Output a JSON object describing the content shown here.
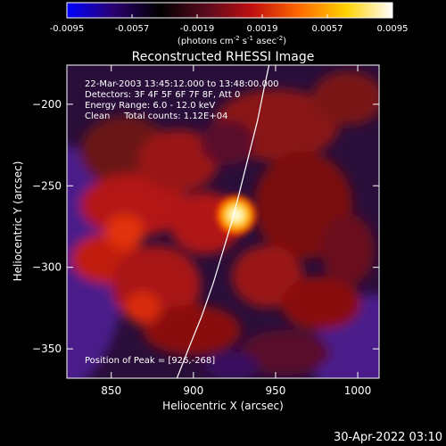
{
  "colorbar": {
    "ticks": [
      "-0.0095",
      "-0.0057",
      "-0.0019",
      "0.0019",
      "0.0057",
      "0.0095"
    ],
    "unit_label_lines": [
      "(photons cm",
      "-2",
      " s",
      "-1",
      " asec",
      "-2",
      ")"
    ],
    "range": [
      -0.0095,
      0.0095
    ],
    "colors": [
      "#0000ff",
      "#2a0070",
      "#000000",
      "#5a0a1e",
      "#c01010",
      "#ff6a00",
      "#ffd200",
      "#ffffff"
    ]
  },
  "footer_timestamp": "30-Apr-2022 03:10",
  "chart_data": {
    "type": "heatmap",
    "title": "Reconstructed RHESSI Image",
    "xlabel": "Heliocentric X (arcsec)",
    "ylabel": "Heliocentric Y (arcsec)",
    "xlim": [
      823,
      1013
    ],
    "ylim": [
      -368,
      -176
    ],
    "x_ticks": [
      850,
      900,
      950,
      1000
    ],
    "y_ticks": [
      -200,
      -250,
      -300,
      -350
    ],
    "annotations": [
      "22-Mar-2003 13:45:12.000 to 13:48:00.000",
      "Detectors: 3F 4F 5F 6F 7F 8F, Att 0",
      "Energy Range: 6.0 - 12.0 keV",
      "Clean     Total counts: 1.12E+04"
    ],
    "peak_label": "Position of Peak = [926,-268]",
    "peak": {
      "x": 926,
      "y": -268
    },
    "limb_curve": [
      [
        890,
        -368
      ],
      [
        897,
        -350
      ],
      [
        905,
        -330
      ],
      [
        912,
        -310
      ],
      [
        918,
        -290
      ],
      [
        924,
        -270
      ],
      [
        929,
        -250
      ],
      [
        934,
        -230
      ],
      [
        939,
        -210
      ],
      [
        943,
        -190
      ],
      [
        946,
        -176
      ]
    ]
  }
}
